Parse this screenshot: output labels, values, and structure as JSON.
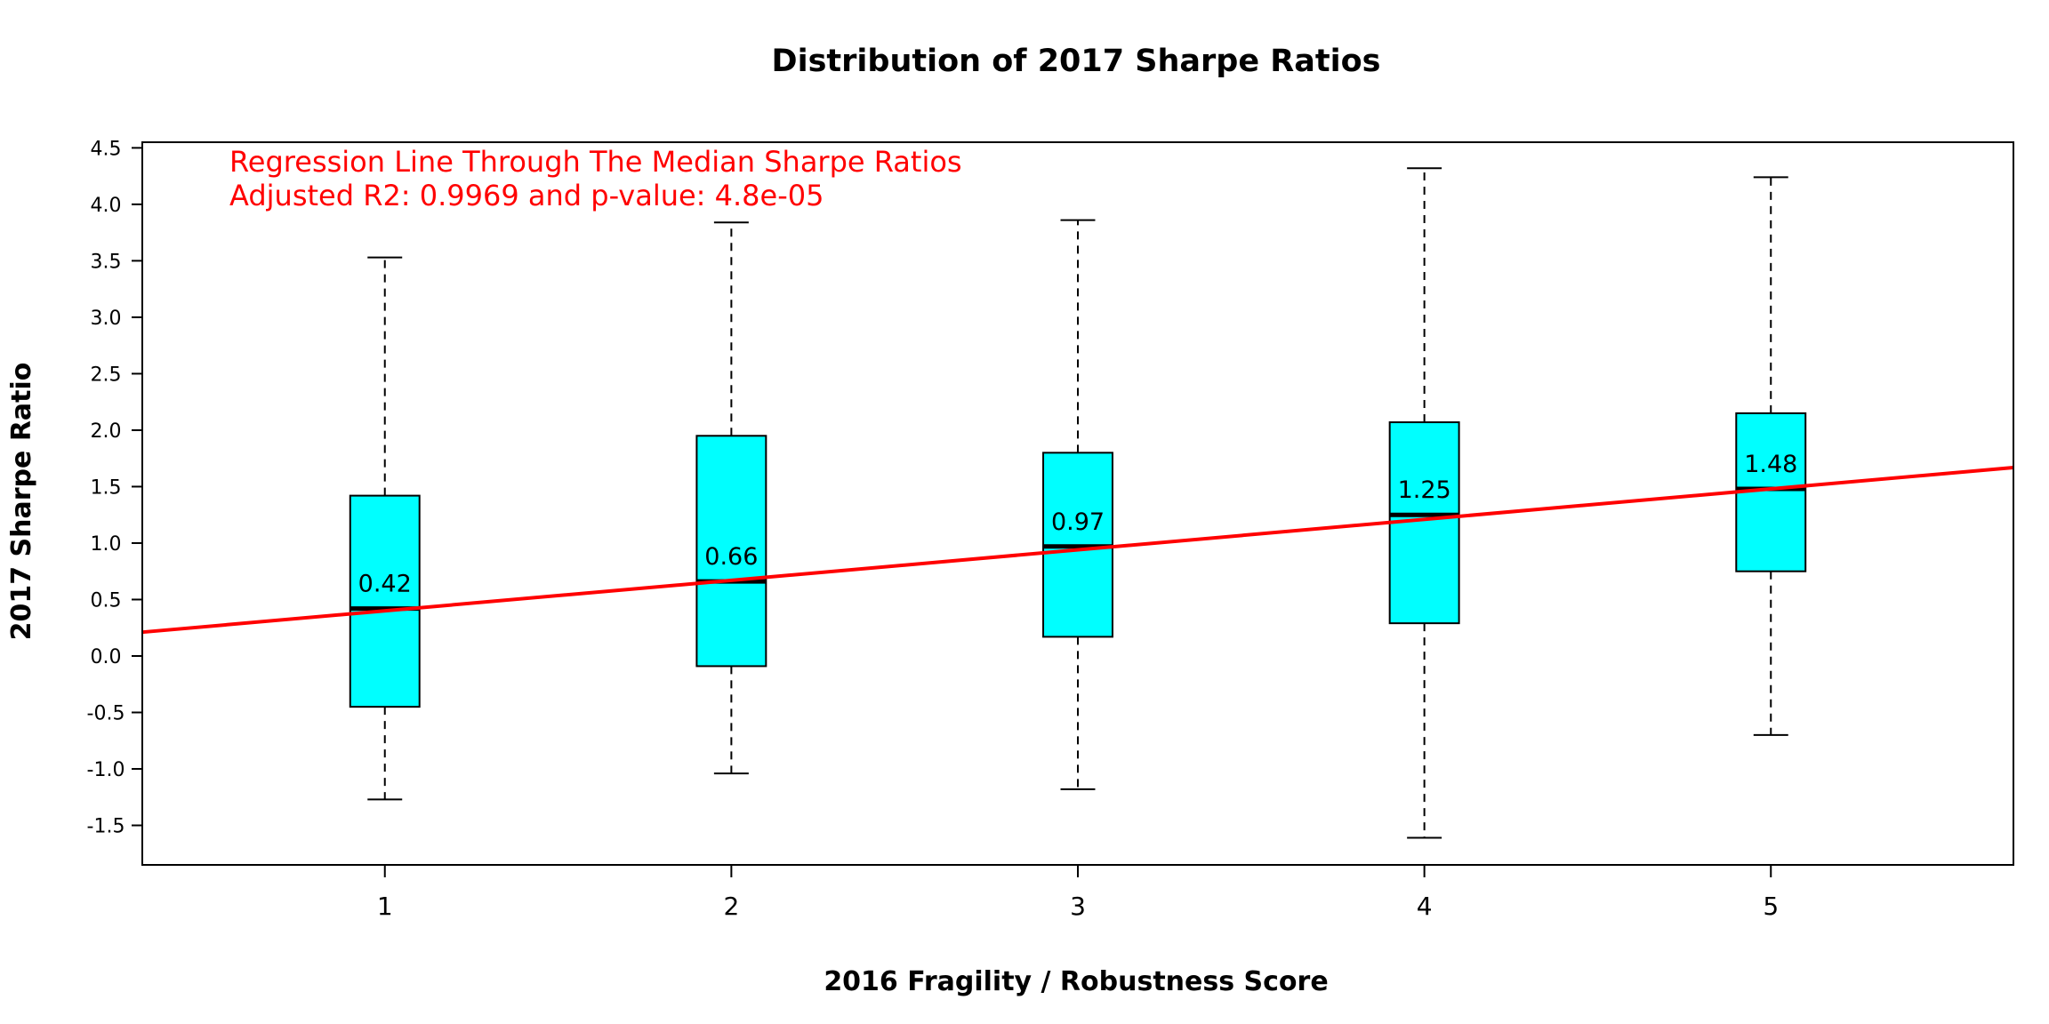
{
  "chart_data": {
    "type": "boxplot",
    "title": "Distribution of 2017 Sharpe Ratios",
    "xlabel": "2016 Fragility / Robustness Score",
    "ylabel": "2017 Sharpe Ratio",
    "categories": [
      "1",
      "2",
      "3",
      "4",
      "5"
    ],
    "ylim": [
      -1.85,
      4.55
    ],
    "xlim": [
      0.3,
      5.7
    ],
    "yticks": [
      "-1.5",
      "-1.0",
      "-0.5",
      "0.0",
      "0.5",
      "1.0",
      "1.5",
      "2.0",
      "2.5",
      "3.0",
      "3.5",
      "4.0",
      "4.5"
    ],
    "grid": false,
    "box_color": "#00ffff",
    "regression_color": "#ff0000",
    "boxes": [
      {
        "category": "1",
        "whisker_low": -1.27,
        "q1": -0.45,
        "median": 0.42,
        "q3": 1.42,
        "whisker_high": 3.53,
        "median_label": "0.42"
      },
      {
        "category": "2",
        "whisker_low": -1.04,
        "q1": -0.09,
        "median": 0.66,
        "q3": 1.95,
        "whisker_high": 3.84,
        "median_label": "0.66"
      },
      {
        "category": "3",
        "whisker_low": -1.18,
        "q1": 0.17,
        "median": 0.97,
        "q3": 1.8,
        "whisker_high": 3.86,
        "median_label": "0.97"
      },
      {
        "category": "4",
        "whisker_low": -1.61,
        "q1": 0.29,
        "median": 1.25,
        "q3": 2.07,
        "whisker_high": 4.32,
        "median_label": "1.25"
      },
      {
        "category": "5",
        "whisker_low": -0.7,
        "q1": 0.75,
        "median": 1.48,
        "q3": 2.15,
        "whisker_high": 4.24,
        "median_label": "1.48"
      }
    ],
    "regression": {
      "intercept": 0.13,
      "slope": 0.27
    },
    "annotations": [
      "Regression Line Through The Median Sharpe Ratios",
      "Adjusted R2: 0.9969 and p-value: 4.8e-05"
    ]
  }
}
